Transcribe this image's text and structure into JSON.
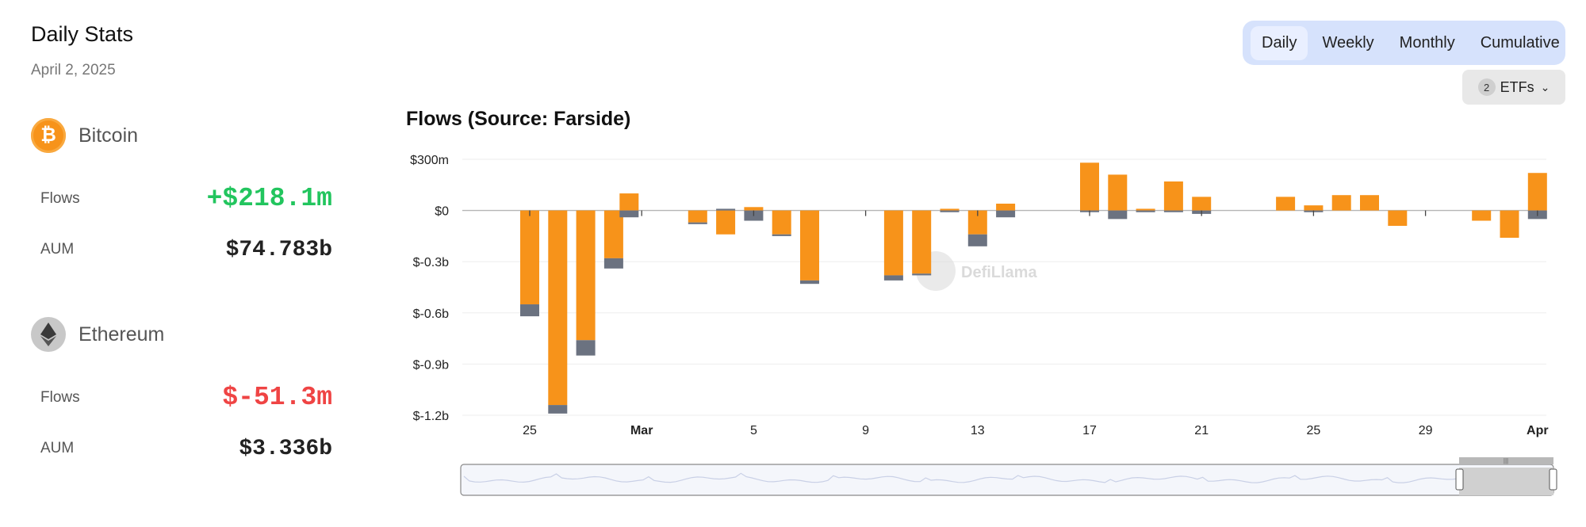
{
  "stats": {
    "title": "Daily Stats",
    "date": "April 2, 2025",
    "assets": [
      {
        "name": "Bitcoin",
        "flows_label": "Flows",
        "flows": "+$218.1m",
        "aum_label": "AUM",
        "aum": "$74.783b"
      },
      {
        "name": "Ethereum",
        "flows_label": "Flows",
        "flows": "$-51.3m",
        "aum_label": "AUM",
        "aum": "$3.336b"
      }
    ]
  },
  "controls": {
    "periods": [
      "Daily",
      "Weekly",
      "Monthly",
      "Cumulative"
    ],
    "active_period": "Daily",
    "etf_count": "2",
    "etf_label": "ETFs"
  },
  "watermark": "DefiLlama",
  "colors": {
    "btc": "#f7931a",
    "eth": "#6b7280",
    "positive": "#22c55e",
    "negative": "#ef4444",
    "segment_bg": "#d6e2fc"
  },
  "chart_data": {
    "type": "bar",
    "title": "Flows (Source: Farside)",
    "ylim": [
      -1.2,
      0.3
    ],
    "yticks": [
      0.3,
      0,
      -0.3,
      -0.6,
      -0.9,
      -1.2
    ],
    "ytick_labels": [
      "$300m",
      "$0",
      "$-0.3b",
      "$-0.6b",
      "$-0.9b",
      "$-1.2b"
    ],
    "units": "billions USD",
    "x_range": [
      0,
      38
    ],
    "xticks": [
      {
        "x": 0,
        "label": "25",
        "bold": false
      },
      {
        "x": 4,
        "label": "Mar",
        "bold": true
      },
      {
        "x": 8,
        "label": "5",
        "bold": false
      },
      {
        "x": 12,
        "label": "9",
        "bold": false
      },
      {
        "x": 16,
        "label": "13",
        "bold": false
      },
      {
        "x": 20,
        "label": "17",
        "bold": false
      },
      {
        "x": 24,
        "label": "21",
        "bold": false
      },
      {
        "x": 28,
        "label": "25",
        "bold": false
      },
      {
        "x": 32,
        "label": "29",
        "bold": false
      },
      {
        "x": 36,
        "label": "Apr",
        "bold": true
      }
    ],
    "series": [
      {
        "name": "Bitcoin",
        "color": "#f7931a",
        "points": [
          {
            "x": 0,
            "v": -0.55
          },
          {
            "x": 1,
            "v": -1.14
          },
          {
            "x": 2,
            "v": -0.76
          },
          {
            "x": 3,
            "v": -0.28
          },
          {
            "x": 3.55,
            "v": 0.1
          },
          {
            "x": 6,
            "v": -0.07
          },
          {
            "x": 7,
            "v": -0.14
          },
          {
            "x": 8,
            "v": 0.02
          },
          {
            "x": 9,
            "v": -0.14
          },
          {
            "x": 10,
            "v": -0.41
          },
          {
            "x": 13,
            "v": -0.38
          },
          {
            "x": 14,
            "v": -0.37
          },
          {
            "x": 15,
            "v": 0.01
          },
          {
            "x": 16,
            "v": -0.14
          },
          {
            "x": 17,
            "v": 0.04
          },
          {
            "x": 20,
            "v": 0.28
          },
          {
            "x": 21,
            "v": 0.21
          },
          {
            "x": 22,
            "v": 0.01
          },
          {
            "x": 23,
            "v": 0.17
          },
          {
            "x": 24,
            "v": 0.08
          },
          {
            "x": 27,
            "v": 0.08
          },
          {
            "x": 28,
            "v": 0.03
          },
          {
            "x": 29,
            "v": 0.09
          },
          {
            "x": 30,
            "v": 0.09
          },
          {
            "x": 31,
            "v": -0.09
          },
          {
            "x": 34,
            "v": -0.06
          },
          {
            "x": 35,
            "v": -0.16
          },
          {
            "x": 36,
            "v": 0.22
          }
        ]
      },
      {
        "name": "Ethereum",
        "color": "#6b7280",
        "points": [
          {
            "x": 0,
            "v": -0.07
          },
          {
            "x": 1,
            "v": -0.05
          },
          {
            "x": 2,
            "v": -0.09
          },
          {
            "x": 3,
            "v": -0.06
          },
          {
            "x": 3.55,
            "v": -0.04
          },
          {
            "x": 6,
            "v": -0.01
          },
          {
            "x": 7,
            "v": 0.01
          },
          {
            "x": 8,
            "v": -0.06
          },
          {
            "x": 9,
            "v": -0.01
          },
          {
            "x": 10,
            "v": -0.02
          },
          {
            "x": 13,
            "v": -0.03
          },
          {
            "x": 14,
            "v": -0.01
          },
          {
            "x": 15,
            "v": -0.01
          },
          {
            "x": 16,
            "v": -0.07
          },
          {
            "x": 17,
            "v": -0.04
          },
          {
            "x": 20,
            "v": -0.01
          },
          {
            "x": 21,
            "v": -0.05
          },
          {
            "x": 22,
            "v": -0.01
          },
          {
            "x": 23,
            "v": -0.01
          },
          {
            "x": 24,
            "v": -0.02
          },
          {
            "x": 27,
            "v": 0.0
          },
          {
            "x": 28,
            "v": -0.01
          },
          {
            "x": 29,
            "v": 0.0
          },
          {
            "x": 30,
            "v": 0.0
          },
          {
            "x": 31,
            "v": 0.0
          },
          {
            "x": 34,
            "v": 0.0
          },
          {
            "x": 35,
            "v": 0.0
          },
          {
            "x": 36,
            "v": -0.05
          }
        ]
      }
    ]
  }
}
